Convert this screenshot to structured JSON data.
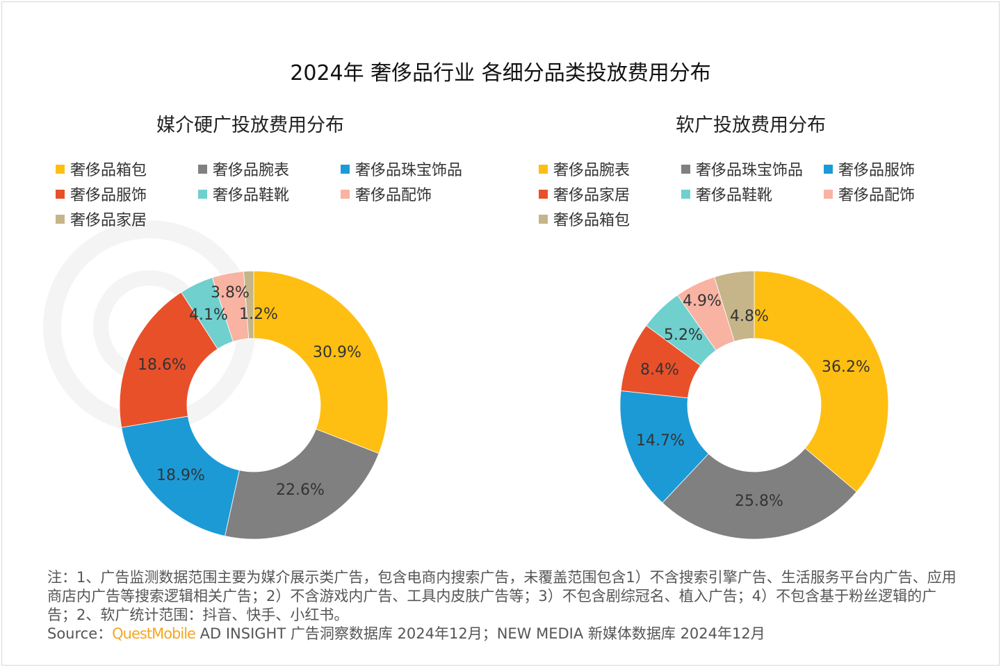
{
  "title": "2024年 奢侈品行业 各细分品类投放费用分布",
  "watermark": "QUEST MOBILE",
  "colors": {
    "yellow": "#FFBE12",
    "gray": "#808080",
    "blue": "#1C9AD6",
    "red": "#E8502A",
    "teal": "#6FD0CE",
    "pink": "#F8B3A2",
    "tan": "#C5B589"
  },
  "chart_data": [
    {
      "type": "pie",
      "variant": "donut",
      "title": "媒介硬广投放费用分布",
      "legend_position": "top",
      "legend": [
        {
          "label": "奢侈品箱包",
          "color": "#FFBE12"
        },
        {
          "label": "奢侈品腕表",
          "color": "#808080"
        },
        {
          "label": "奢侈品珠宝饰品",
          "color": "#1C9AD6"
        },
        {
          "label": "奢侈品服饰",
          "color": "#E8502A"
        },
        {
          "label": "奢侈品鞋靴",
          "color": "#6FD0CE"
        },
        {
          "label": "奢侈品配饰",
          "color": "#F8B3A2"
        },
        {
          "label": "奢侈品家居",
          "color": "#C5B589"
        }
      ],
      "slices": [
        {
          "label": "奢侈品箱包",
          "value": 30.9,
          "text": "30.9%",
          "color": "#FFBE12"
        },
        {
          "label": "奢侈品腕表",
          "value": 22.6,
          "text": "22.6%",
          "color": "#808080"
        },
        {
          "label": "奢侈品珠宝饰品",
          "value": 18.9,
          "text": "18.9%",
          "color": "#1C9AD6"
        },
        {
          "label": "奢侈品服饰",
          "value": 18.6,
          "text": "18.6%",
          "color": "#E8502A"
        },
        {
          "label": "奢侈品鞋靴",
          "value": 4.1,
          "text": "4.1%",
          "color": "#6FD0CE"
        },
        {
          "label": "奢侈品配饰",
          "value": 3.8,
          "text": "3.8%",
          "color": "#F8B3A2"
        },
        {
          "label": "奢侈品家居",
          "value": 1.2,
          "text": "1.2%",
          "color": "#C5B589"
        }
      ]
    },
    {
      "type": "pie",
      "variant": "donut",
      "title": "软广投放费用分布",
      "legend_position": "top",
      "legend": [
        {
          "label": "奢侈品腕表",
          "color": "#FFBE12"
        },
        {
          "label": "奢侈品珠宝饰品",
          "color": "#808080"
        },
        {
          "label": "奢侈品服饰",
          "color": "#1C9AD6"
        },
        {
          "label": "奢侈品家居",
          "color": "#E8502A"
        },
        {
          "label": "奢侈品鞋靴",
          "color": "#6FD0CE"
        },
        {
          "label": "奢侈品配饰",
          "color": "#F8B3A2"
        },
        {
          "label": "奢侈品箱包",
          "color": "#C5B589"
        }
      ],
      "slices": [
        {
          "label": "奢侈品腕表",
          "value": 36.2,
          "text": "36.2%",
          "color": "#FFBE12"
        },
        {
          "label": "奢侈品珠宝饰品",
          "value": 25.8,
          "text": "25.8%",
          "color": "#808080"
        },
        {
          "label": "奢侈品服饰",
          "value": 14.7,
          "text": "14.7%",
          "color": "#1C9AD6"
        },
        {
          "label": "奢侈品家居",
          "value": 8.4,
          "text": "8.4%",
          "color": "#E8502A"
        },
        {
          "label": "奢侈品鞋靴",
          "value": 5.2,
          "text": "5.2%",
          "color": "#6FD0CE"
        },
        {
          "label": "奢侈品配饰",
          "value": 4.9,
          "text": "4.9%",
          "color": "#F8B3A2"
        },
        {
          "label": "奢侈品箱包",
          "value": 4.8,
          "text": "4.8%",
          "color": "#C5B589"
        }
      ]
    }
  ],
  "notes": "注：1、广告监测数据范围主要为媒介展示类广告，包含电商内搜索广告，未覆盖范围包含1）不含搜索引擎广告、生活服务平台内广告、应用商店内广告等搜索逻辑相关广告；2）不含游戏内广告、工具内皮肤广告等；3）不包含剧综冠名、植入广告；4）不包含基于粉丝逻辑的广告；2、软广统计范围：抖音、快手、小红书。",
  "source": {
    "prefix": "Source：",
    "brand": "QuestMobile",
    "text": " AD INSIGHT 广告洞察数据库 2024年12月；NEW MEDIA 新媒体数据库 2024年12月"
  }
}
